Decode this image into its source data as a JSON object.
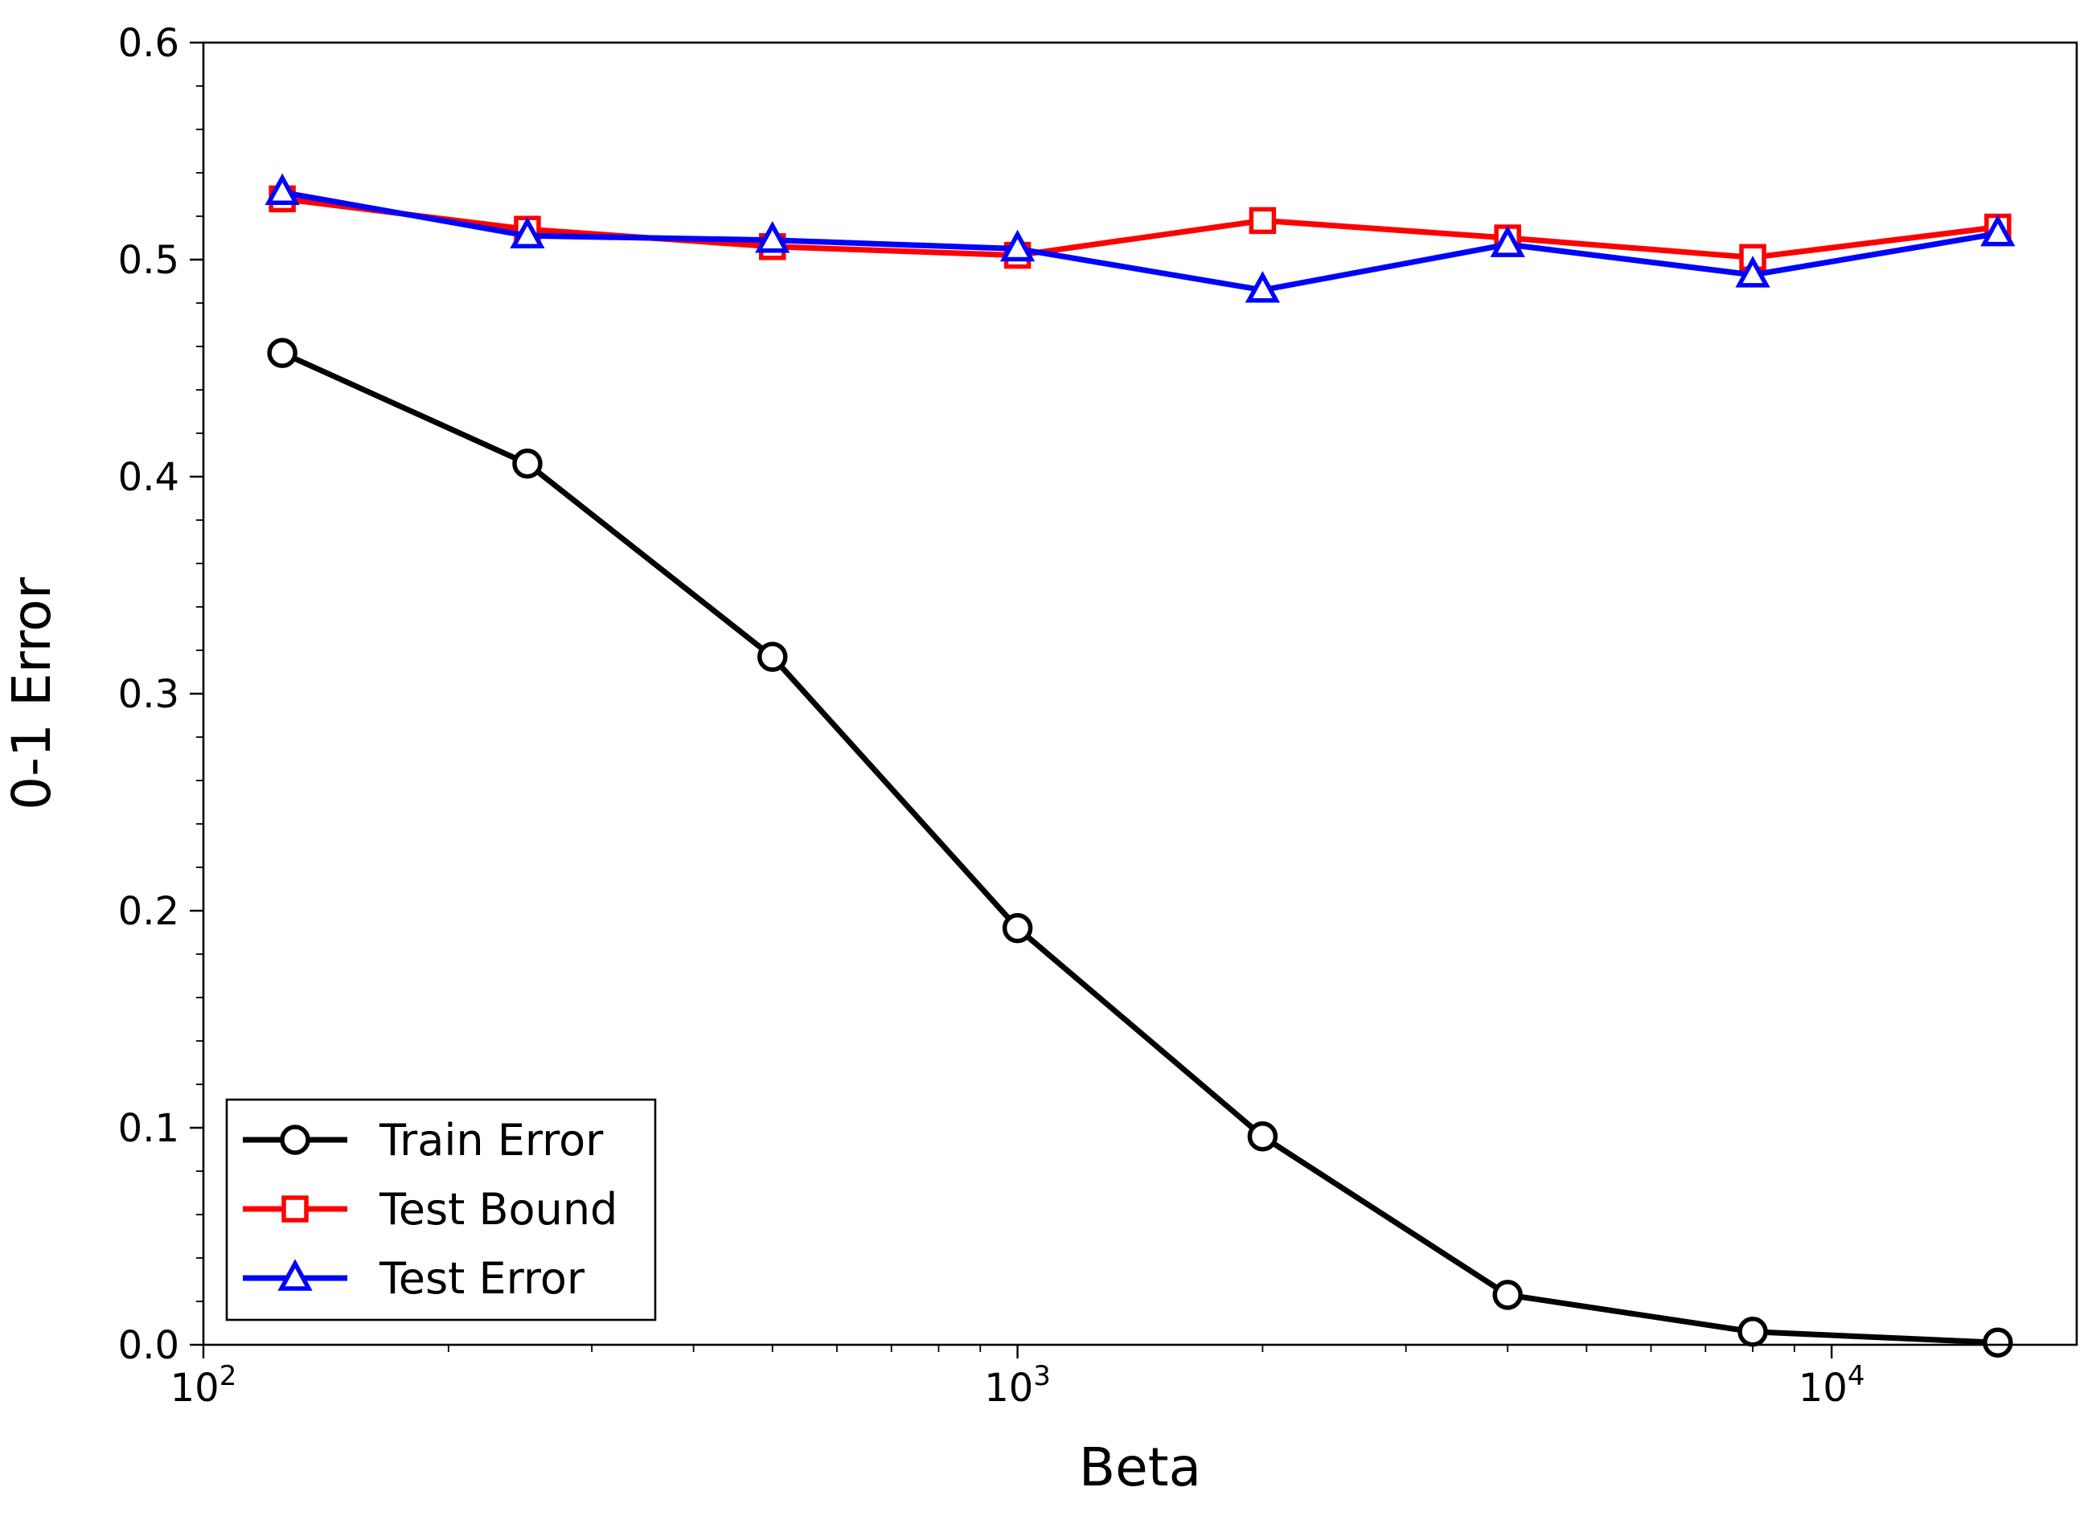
{
  "chart_data": {
    "type": "line",
    "xlabel": "Beta",
    "ylabel": "0-1 Error",
    "xscale": "log",
    "xlim": [
      100,
      20000
    ],
    "ylim": [
      0.0,
      0.6
    ],
    "x": [
      125,
      250,
      500,
      1000,
      2000,
      4000,
      8000,
      16000
    ],
    "x_ticks": [
      {
        "value": 100,
        "base": "10",
        "exp": "2"
      },
      {
        "value": 1000,
        "base": "10",
        "exp": "3"
      },
      {
        "value": 10000,
        "base": "10",
        "exp": "4"
      }
    ],
    "y_ticks": [
      "0.0",
      "0.1",
      "0.2",
      "0.3",
      "0.4",
      "0.5",
      "0.6"
    ],
    "grid": false,
    "legend_position": "lower-left",
    "series": [
      {
        "name": "Train Error",
        "color": "#000000",
        "marker": "circle",
        "values": [
          0.457,
          0.406,
          0.317,
          0.192,
          0.096,
          0.023,
          0.006,
          0.001
        ]
      },
      {
        "name": "Test Bound",
        "color": "#ff0000",
        "marker": "square",
        "values": [
          0.528,
          0.514,
          0.506,
          0.502,
          0.518,
          0.51,
          0.501,
          0.515
        ]
      },
      {
        "name": "Test Error",
        "color": "#0000ff",
        "marker": "triangle",
        "values": [
          0.531,
          0.511,
          0.509,
          0.505,
          0.486,
          0.507,
          0.493,
          0.512
        ]
      }
    ]
  }
}
